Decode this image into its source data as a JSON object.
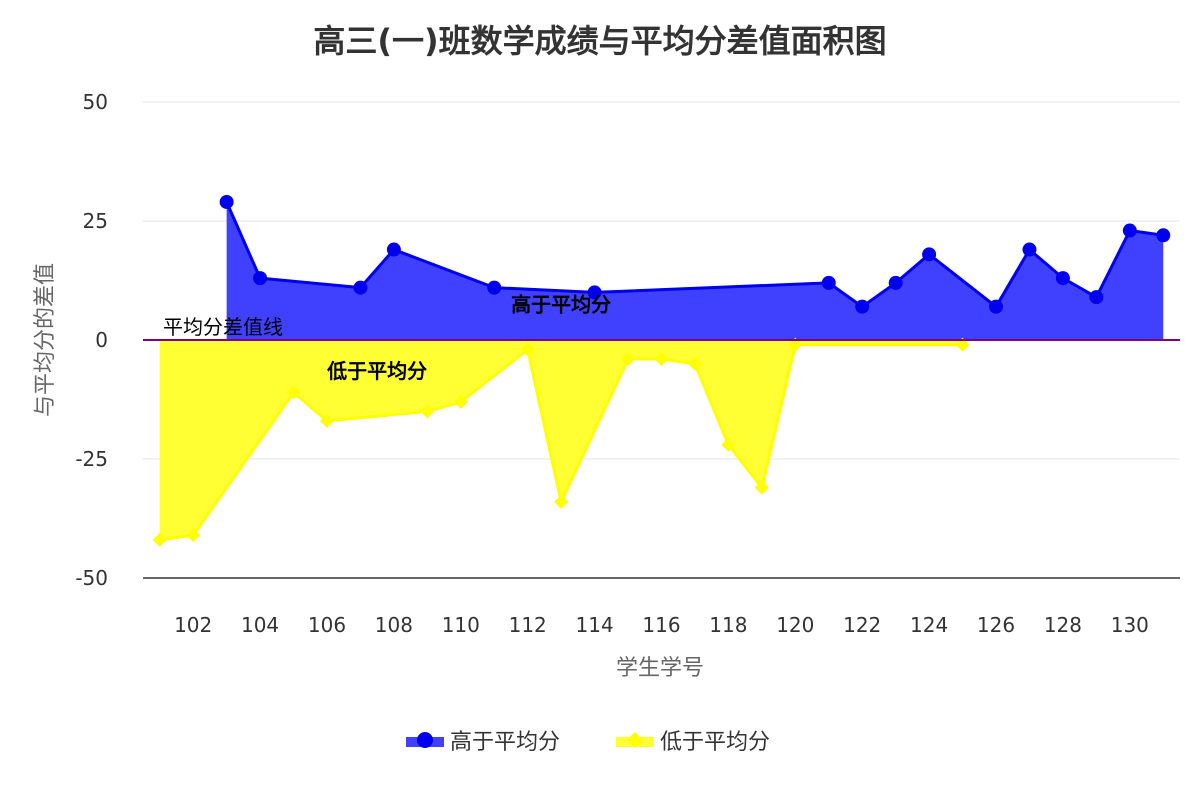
{
  "chart_data": {
    "type": "area",
    "title": "高三(一)班数学成绩与平均分差值面积图",
    "xlabel": "学生学号",
    "ylabel": "与平均分的差值",
    "ylim": [
      -50,
      50
    ],
    "yticks": [
      50,
      25,
      0,
      -25,
      -50
    ],
    "xlim": [
      100.5,
      131.5
    ],
    "xticks": [
      102,
      104,
      106,
      108,
      110,
      112,
      114,
      116,
      118,
      120,
      122,
      124,
      126,
      128,
      130
    ],
    "grid": true,
    "legend_position": "bottom",
    "reference_line": {
      "y": 0,
      "label": "平均分差值线",
      "color": "#800080"
    },
    "series": [
      {
        "name": "高于平均分",
        "color": "#0000ee",
        "fill": "#4040ff",
        "marker": "circle",
        "x": [
          103,
          104,
          107,
          108,
          111,
          114,
          121,
          122,
          123,
          124,
          126,
          127,
          128,
          129,
          130,
          131
        ],
        "values": [
          29,
          13,
          11,
          19,
          11,
          10,
          12,
          7,
          12,
          18,
          7,
          19,
          13,
          9,
          23,
          22
        ]
      },
      {
        "name": "低于平均分",
        "color": "#ffff00",
        "fill": "#ffff33",
        "marker": "diamond",
        "x": [
          101,
          102,
          105,
          106,
          109,
          110,
          112,
          113,
          115,
          116,
          117,
          118,
          119,
          120,
          125
        ],
        "values": [
          -42,
          -41,
          -11,
          -17,
          -15,
          -13,
          -2,
          -34,
          -4,
          -4,
          -5,
          -22,
          -31,
          -1,
          -1
        ]
      }
    ],
    "annotations": [
      {
        "text": "高于平均分",
        "x": 113,
        "y": 6
      },
      {
        "text": "低于平均分",
        "x": 107.5,
        "y": -8
      }
    ]
  }
}
